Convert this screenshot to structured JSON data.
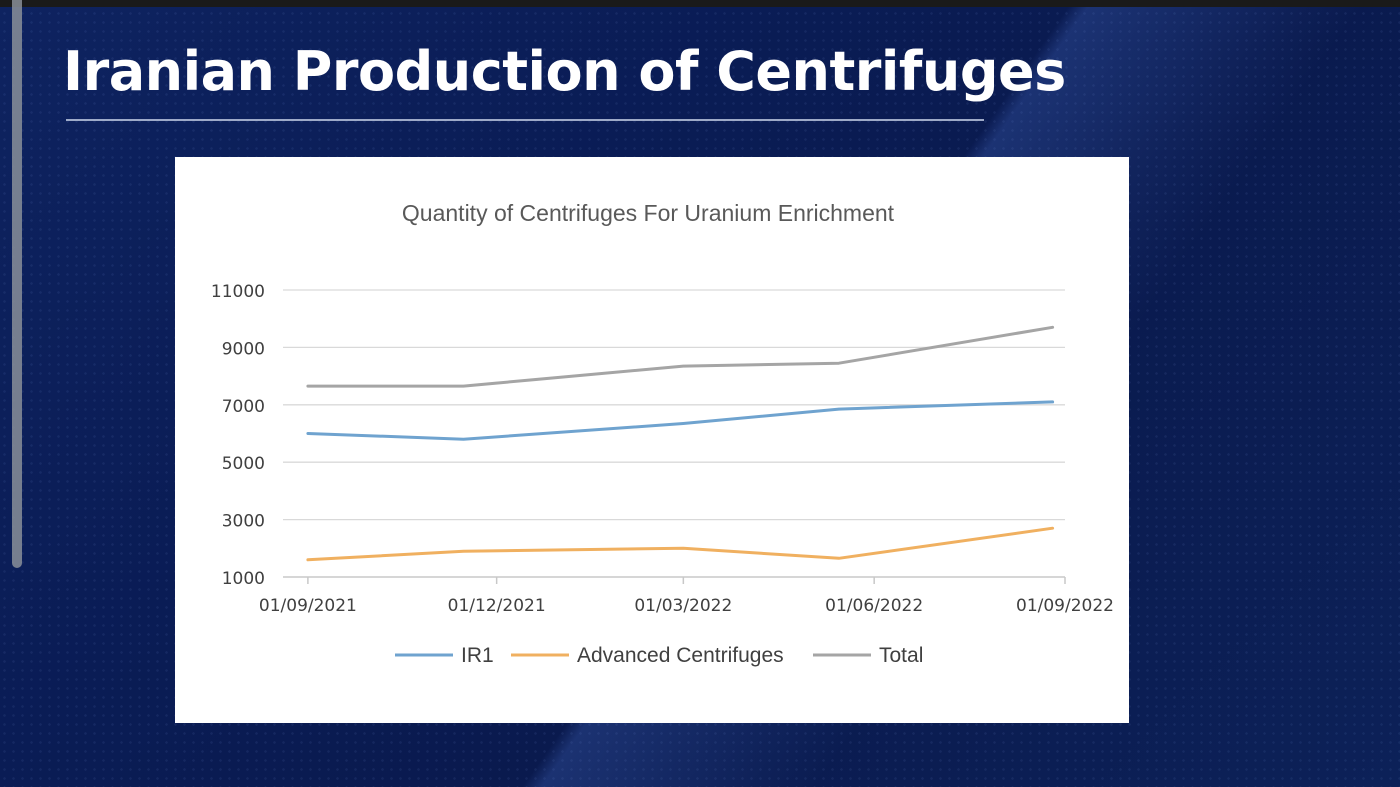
{
  "slide": {
    "title": "Iranian Production of Centrifuges"
  },
  "colors": {
    "background": "#0a1a4a",
    "ir1": "#6fa3cf",
    "advanced": "#f0b060",
    "total": "#a5a5a5",
    "grid": "#d9d9d9"
  },
  "chart_data": {
    "type": "line",
    "title": "Quantity of Centrifuges For Uranium Enrichment",
    "xlabel": "",
    "ylabel": "",
    "x": [
      "2021-09-01",
      "2021-11-15",
      "2022-03-01",
      "2022-05-15",
      "2022-08-26"
    ],
    "x_tick_labels": [
      {
        "date": "2021-09-01",
        "label": "01/09/2021"
      },
      {
        "date": "2021-12-01",
        "label": "01/12/2021"
      },
      {
        "date": "2022-03-01",
        "label": "01/03/2022"
      },
      {
        "date": "2022-06-01",
        "label": "01/06/2022"
      },
      {
        "date": "2022-09-01",
        "label": "01/09/2022"
      }
    ],
    "xlim": [
      "2021-08-20",
      "2022-09-01"
    ],
    "ylim": [
      1000,
      11000
    ],
    "y_ticks": [
      1000,
      3000,
      5000,
      7000,
      9000,
      11000
    ],
    "series": [
      {
        "name": "IR1",
        "color": "#6fa3cf",
        "values": [
          6000,
          5800,
          6350,
          6850,
          7100
        ]
      },
      {
        "name": "Advanced Centrifuges",
        "color": "#f0b060",
        "values": [
          1600,
          1900,
          2000,
          1650,
          2700
        ]
      },
      {
        "name": "Total",
        "color": "#a5a5a5",
        "values": [
          7650,
          7650,
          8350,
          8450,
          9700
        ]
      }
    ],
    "grid": true,
    "legend_position": "bottom"
  }
}
